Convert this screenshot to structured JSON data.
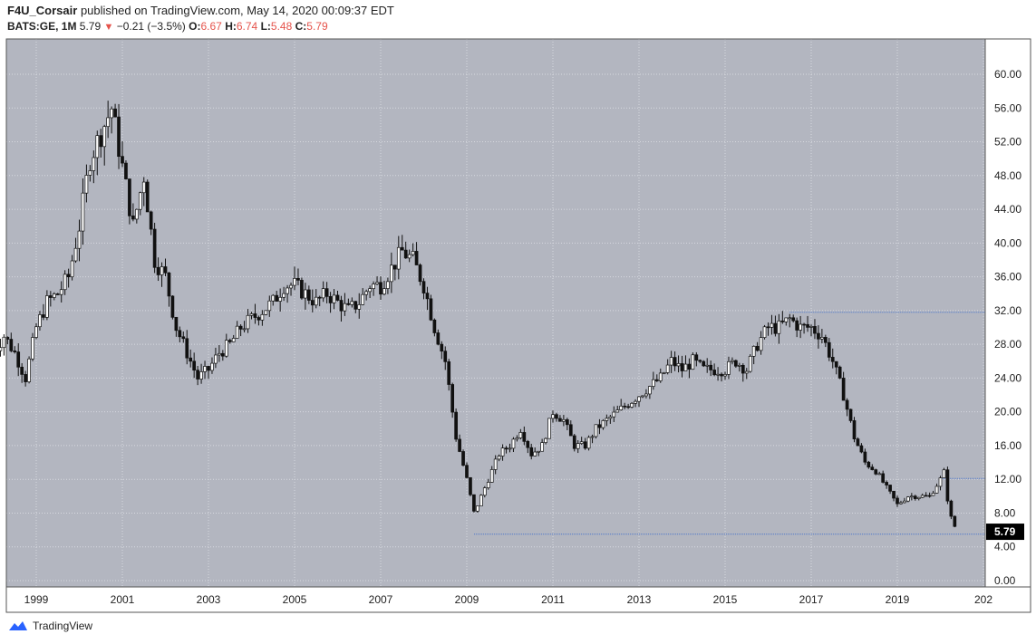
{
  "header": {
    "author": "F4U_Corsair",
    "published_text": "published on TradingView.com, May 14, 2020 00:09:37 EDT",
    "symbol": "BATS:GE, 1M",
    "last": "5.79",
    "change": "−0.21 (−3.5%)",
    "o_label": "O:",
    "o_value": "6.67",
    "h_label": "H:",
    "h_value": "6.74",
    "l_label": "L:",
    "l_value": "5.48",
    "c_label": "C:",
    "c_value": "5.79"
  },
  "footer": {
    "brand": "TradingView"
  },
  "colors": {
    "plot_bg": "#b3b6c0",
    "candle": "#111111",
    "grid": "#d7d9df",
    "hline": "#4a74c9",
    "text": "#222222",
    "down": "#e5534b"
  },
  "chart_data": {
    "type": "candlestick",
    "ylim": [
      0,
      62
    ],
    "y_ticks": [
      "60.00",
      "56.00",
      "52.00",
      "48.00",
      "44.00",
      "40.00",
      "36.00",
      "32.00",
      "28.00",
      "24.00",
      "20.00",
      "16.00",
      "12.00",
      "8.00",
      "4.00",
      "0.00"
    ],
    "x_ticks": [
      "1999",
      "2001",
      "2003",
      "2005",
      "2007",
      "2009",
      "2011",
      "2013",
      "2015",
      "2017",
      "2019",
      "202"
    ],
    "last_price_label": "5.79",
    "series": [
      {
        "t": 1998.0,
        "v": 27
      },
      {
        "t": 1998.25,
        "v": 29
      },
      {
        "t": 1998.5,
        "v": 27
      },
      {
        "t": 1998.75,
        "v": 24
      },
      {
        "t": 1999.0,
        "v": 30
      },
      {
        "t": 1999.25,
        "v": 33
      },
      {
        "t": 1999.5,
        "v": 34
      },
      {
        "t": 1999.75,
        "v": 36
      },
      {
        "t": 2000.0,
        "v": 42
      },
      {
        "t": 2000.25,
        "v": 50
      },
      {
        "t": 2000.5,
        "v": 53
      },
      {
        "t": 2000.75,
        "v": 56
      },
      {
        "t": 2001.0,
        "v": 49
      },
      {
        "t": 2001.25,
        "v": 42
      },
      {
        "t": 2001.5,
        "v": 48
      },
      {
        "t": 2001.75,
        "v": 38
      },
      {
        "t": 2002.0,
        "v": 36
      },
      {
        "t": 2002.25,
        "v": 30
      },
      {
        "t": 2002.5,
        "v": 27
      },
      {
        "t": 2002.75,
        "v": 24
      },
      {
        "t": 2003.0,
        "v": 25
      },
      {
        "t": 2003.25,
        "v": 27
      },
      {
        "t": 2003.5,
        "v": 28
      },
      {
        "t": 2003.75,
        "v": 30
      },
      {
        "t": 2004.0,
        "v": 31
      },
      {
        "t": 2004.25,
        "v": 32
      },
      {
        "t": 2004.5,
        "v": 33
      },
      {
        "t": 2004.75,
        "v": 35
      },
      {
        "t": 2005.0,
        "v": 35
      },
      {
        "t": 2005.25,
        "v": 34
      },
      {
        "t": 2005.5,
        "v": 33
      },
      {
        "t": 2005.75,
        "v": 34
      },
      {
        "t": 2006.0,
        "v": 33
      },
      {
        "t": 2006.25,
        "v": 32
      },
      {
        "t": 2006.5,
        "v": 33
      },
      {
        "t": 2006.75,
        "v": 35
      },
      {
        "t": 2007.0,
        "v": 35
      },
      {
        "t": 2007.25,
        "v": 37
      },
      {
        "t": 2007.5,
        "v": 39
      },
      {
        "t": 2007.75,
        "v": 38
      },
      {
        "t": 2008.0,
        "v": 35
      },
      {
        "t": 2008.25,
        "v": 30
      },
      {
        "t": 2008.5,
        "v": 26
      },
      {
        "t": 2008.75,
        "v": 17
      },
      {
        "t": 2009.0,
        "v": 12
      },
      {
        "t": 2009.17,
        "v": 8
      },
      {
        "t": 2009.5,
        "v": 12
      },
      {
        "t": 2009.75,
        "v": 15
      },
      {
        "t": 2010.0,
        "v": 16
      },
      {
        "t": 2010.25,
        "v": 18
      },
      {
        "t": 2010.5,
        "v": 15
      },
      {
        "t": 2010.75,
        "v": 16
      },
      {
        "t": 2011.0,
        "v": 20
      },
      {
        "t": 2011.25,
        "v": 19
      },
      {
        "t": 2011.5,
        "v": 16
      },
      {
        "t": 2011.75,
        "v": 16
      },
      {
        "t": 2012.0,
        "v": 18
      },
      {
        "t": 2012.25,
        "v": 19
      },
      {
        "t": 2012.5,
        "v": 20
      },
      {
        "t": 2012.75,
        "v": 21
      },
      {
        "t": 2013.0,
        "v": 22
      },
      {
        "t": 2013.25,
        "v": 23
      },
      {
        "t": 2013.5,
        "v": 24
      },
      {
        "t": 2013.75,
        "v": 26
      },
      {
        "t": 2014.0,
        "v": 25
      },
      {
        "t": 2014.25,
        "v": 26
      },
      {
        "t": 2014.5,
        "v": 25
      },
      {
        "t": 2014.75,
        "v": 25
      },
      {
        "t": 2015.0,
        "v": 25
      },
      {
        "t": 2015.25,
        "v": 26
      },
      {
        "t": 2015.5,
        "v": 25
      },
      {
        "t": 2015.75,
        "v": 28
      },
      {
        "t": 2016.0,
        "v": 30
      },
      {
        "t": 2016.25,
        "v": 30
      },
      {
        "t": 2016.5,
        "v": 31
      },
      {
        "t": 2016.75,
        "v": 30
      },
      {
        "t": 2017.0,
        "v": 30
      },
      {
        "t": 2017.25,
        "v": 29
      },
      {
        "t": 2017.5,
        "v": 26
      },
      {
        "t": 2017.75,
        "v": 22
      },
      {
        "t": 2018.0,
        "v": 17
      },
      {
        "t": 2018.25,
        "v": 14
      },
      {
        "t": 2018.5,
        "v": 13
      },
      {
        "t": 2018.75,
        "v": 11
      },
      {
        "t": 2019.0,
        "v": 9
      },
      {
        "t": 2019.25,
        "v": 10
      },
      {
        "t": 2019.5,
        "v": 10
      },
      {
        "t": 2019.75,
        "v": 10
      },
      {
        "t": 2020.0,
        "v": 12
      },
      {
        "t": 2020.1,
        "v": 13
      },
      {
        "t": 2020.2,
        "v": 8
      },
      {
        "t": 2020.33,
        "v": 6.5
      },
      {
        "t": 2020.37,
        "v": 5.79
      }
    ],
    "x_range": [
      1997.7,
      2020.8
    ],
    "hlines": [
      {
        "from": 2016.5,
        "to": 2020.8,
        "value": 31.8
      },
      {
        "from": 2020.05,
        "to": 2020.8,
        "value": 12.1
      },
      {
        "from": 2009.17,
        "to": 2020.8,
        "value": 5.5
      }
    ]
  }
}
